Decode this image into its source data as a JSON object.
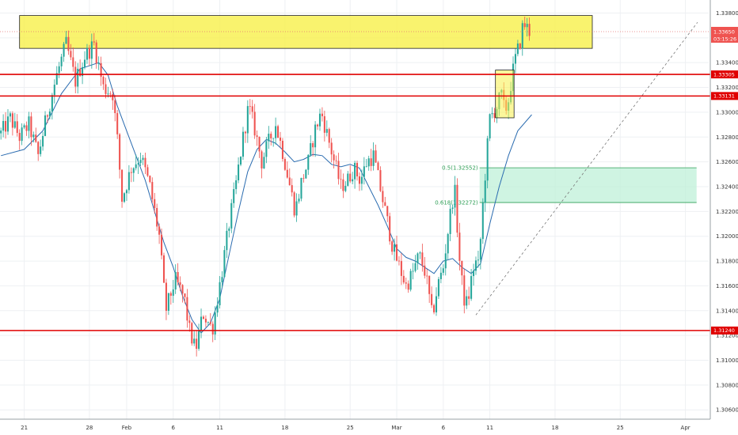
{
  "chart_data": {
    "type": "candlestick",
    "title": "",
    "xlabel": "",
    "ylabel": "",
    "ylim": [
      1.30525,
      1.33905
    ],
    "y_ticks": [
      "1.33800",
      "1.33600",
      "1.33400",
      "1.33200",
      "1.33000",
      "1.32800",
      "1.32600",
      "1.32400",
      "1.32200",
      "1.32000",
      "1.31800",
      "1.31600",
      "1.31400",
      "1.31200",
      "1.31000",
      "1.30800",
      "1.30600"
    ],
    "x_ticks": [
      {
        "label": "21",
        "day": 0
      },
      {
        "label": "28",
        "day": 7
      },
      {
        "label": "Feb",
        "day": 11
      },
      {
        "label": "6",
        "day": 16
      },
      {
        "label": "11",
        "day": 21
      },
      {
        "label": "18",
        "day": 28
      },
      {
        "label": "25",
        "day": 35
      },
      {
        "label": "Mar",
        "day": 40
      },
      {
        "label": "6",
        "day": 45
      },
      {
        "label": "11",
        "day": 50
      },
      {
        "label": "18",
        "day": 57
      },
      {
        "label": "25",
        "day": 64
      },
      {
        "label": "Apr",
        "day": 71
      }
    ],
    "x_range_days": [
      -2.6,
      73.5
    ],
    "close_path": [
      [
        -2.5,
        1.3283
      ],
      [
        -1.5,
        1.3295
      ],
      [
        -0.5,
        1.328
      ],
      [
        0.5,
        1.329
      ],
      [
        1.5,
        1.3265
      ],
      [
        2.5,
        1.33
      ],
      [
        3.5,
        1.333
      ],
      [
        4.5,
        1.3355
      ],
      [
        5.5,
        1.3325
      ],
      [
        6.5,
        1.3345
      ],
      [
        7.5,
        1.3355
      ],
      [
        8.5,
        1.332
      ],
      [
        9.5,
        1.3315
      ],
      [
        10.0,
        1.3278
      ],
      [
        10.5,
        1.323
      ],
      [
        11.5,
        1.3255
      ],
      [
        12.5,
        1.3265
      ],
      [
        13.5,
        1.324
      ],
      [
        14.5,
        1.32
      ],
      [
        15.2,
        1.314
      ],
      [
        16.2,
        1.3165
      ],
      [
        17.2,
        1.315
      ],
      [
        17.7,
        1.3125
      ],
      [
        18.4,
        1.3108
      ],
      [
        19.2,
        1.3138
      ],
      [
        20.2,
        1.3125
      ],
      [
        21.2,
        1.317
      ],
      [
        22.0,
        1.321
      ],
      [
        22.7,
        1.324
      ],
      [
        23.4,
        1.3275
      ],
      [
        24.1,
        1.3305
      ],
      [
        24.8,
        1.3285
      ],
      [
        25.5,
        1.326
      ],
      [
        26.2,
        1.3275
      ],
      [
        27.0,
        1.329
      ],
      [
        27.7,
        1.327
      ],
      [
        28.4,
        1.3245
      ],
      [
        29.1,
        1.322
      ],
      [
        29.8,
        1.3245
      ],
      [
        30.5,
        1.326
      ],
      [
        31.2,
        1.3285
      ],
      [
        31.9,
        1.33
      ],
      [
        32.6,
        1.328
      ],
      [
        33.3,
        1.326
      ],
      [
        34.0,
        1.324
      ],
      [
        34.7,
        1.3245
      ],
      [
        35.4,
        1.3255
      ],
      [
        36.1,
        1.3245
      ],
      [
        36.8,
        1.326
      ],
      [
        37.5,
        1.3265
      ],
      [
        38.2,
        1.324
      ],
      [
        38.9,
        1.3215
      ],
      [
        39.6,
        1.319
      ],
      [
        40.3,
        1.3175
      ],
      [
        41.0,
        1.316
      ],
      [
        41.7,
        1.317
      ],
      [
        42.4,
        1.3185
      ],
      [
        43.1,
        1.317
      ],
      [
        43.8,
        1.3135
      ],
      [
        44.4,
        1.316
      ],
      [
        45.0,
        1.3175
      ],
      [
        45.6,
        1.321
      ],
      [
        46.2,
        1.324
      ],
      [
        46.8,
        1.3175
      ],
      [
        47.2,
        1.315
      ],
      [
        47.6,
        1.3145
      ],
      [
        48.0,
        1.3165
      ],
      [
        48.4,
        1.318
      ],
      [
        48.8,
        1.3175
      ],
      [
        49.2,
        1.322
      ],
      [
        49.6,
        1.326
      ],
      [
        50.0,
        1.3295
      ],
      [
        50.4,
        1.33
      ],
      [
        50.8,
        1.3305
      ],
      [
        51.2,
        1.3315
      ],
      [
        51.6,
        1.33
      ],
      [
        52.0,
        1.331
      ],
      [
        52.4,
        1.333
      ],
      [
        52.8,
        1.3345
      ],
      [
        53.2,
        1.3355
      ],
      [
        53.6,
        1.3372
      ],
      [
        54.0,
        1.3368
      ],
      [
        54.3,
        1.3365
      ]
    ],
    "moving_average": [
      [
        -2.5,
        1.3265
      ],
      [
        0.0,
        1.327
      ],
      [
        2.0,
        1.3285
      ],
      [
        4.0,
        1.3315
      ],
      [
        6.0,
        1.3335
      ],
      [
        8.0,
        1.334
      ],
      [
        9.0,
        1.333
      ],
      [
        10.0,
        1.3305
      ],
      [
        11.0,
        1.3285
      ],
      [
        12.0,
        1.3265
      ],
      [
        13.0,
        1.3245
      ],
      [
        14.0,
        1.322
      ],
      [
        15.0,
        1.3195
      ],
      [
        16.0,
        1.3175
      ],
      [
        17.0,
        1.3152
      ],
      [
        18.0,
        1.3133
      ],
      [
        19.0,
        1.3122
      ],
      [
        20.0,
        1.313
      ],
      [
        21.0,
        1.315
      ],
      [
        22.0,
        1.3185
      ],
      [
        23.0,
        1.322
      ],
      [
        24.0,
        1.3252
      ],
      [
        25.0,
        1.327
      ],
      [
        26.0,
        1.3278
      ],
      [
        27.0,
        1.3275
      ],
      [
        28.0,
        1.3268
      ],
      [
        29.0,
        1.326
      ],
      [
        30.0,
        1.3262
      ],
      [
        31.0,
        1.3266
      ],
      [
        32.0,
        1.3265
      ],
      [
        33.0,
        1.3258
      ],
      [
        34.0,
        1.3256
      ],
      [
        35.0,
        1.3258
      ],
      [
        36.0,
        1.3255
      ],
      [
        37.0,
        1.324
      ],
      [
        38.0,
        1.3225
      ],
      [
        39.0,
        1.3208
      ],
      [
        40.0,
        1.319
      ],
      [
        41.0,
        1.3183
      ],
      [
        42.0,
        1.318
      ],
      [
        43.0,
        1.3175
      ],
      [
        44.0,
        1.317
      ],
      [
        45.0,
        1.318
      ],
      [
        46.0,
        1.3182
      ],
      [
        47.0,
        1.3175
      ],
      [
        48.0,
        1.317
      ],
      [
        49.0,
        1.3178
      ],
      [
        50.0,
        1.321
      ],
      [
        51.0,
        1.324
      ],
      [
        52.0,
        1.3265
      ],
      [
        53.0,
        1.3285
      ],
      [
        54.5,
        1.3298
      ]
    ],
    "resistance_zone": {
      "y_low": 1.33515,
      "y_high": 1.3378,
      "x_start": -0.5,
      "x_end": 61.0,
      "color": "#f7f04a"
    },
    "small_zone": {
      "y_low": 1.32955,
      "y_high": 1.3334,
      "x_start": 50.6,
      "x_end": 52.6,
      "color": "#f7f04a"
    },
    "horizontal_levels": [
      {
        "value": 1.33305,
        "label": "1.33305"
      },
      {
        "value": 1.33131,
        "label": "1.33131"
      },
      {
        "value": 1.3124,
        "label": "1.31240"
      }
    ],
    "current_price": {
      "value": 1.3365,
      "label": "1.33650",
      "countdown": "03:15:26"
    },
    "fib_zone": {
      "x_start": 48.9,
      "x_end": 72.2,
      "upper": {
        "value": 1.32552,
        "label": "0.5(1.32552)"
      },
      "lower": {
        "value": 1.32272,
        "label": "0.618(1.32272)"
      },
      "color": "#2e9e55"
    },
    "projection_line": {
      "from": [
        48.5,
        1.31365
      ],
      "to": [
        72.3,
        1.33725
      ]
    },
    "colors": {
      "up": "#26a69a",
      "down": "#ef5350",
      "ma": "#2b6cb0",
      "level": "#e00000",
      "grid": "#eef0f3",
      "axis_text": "#333333"
    },
    "grid": true,
    "legend": "none"
  }
}
